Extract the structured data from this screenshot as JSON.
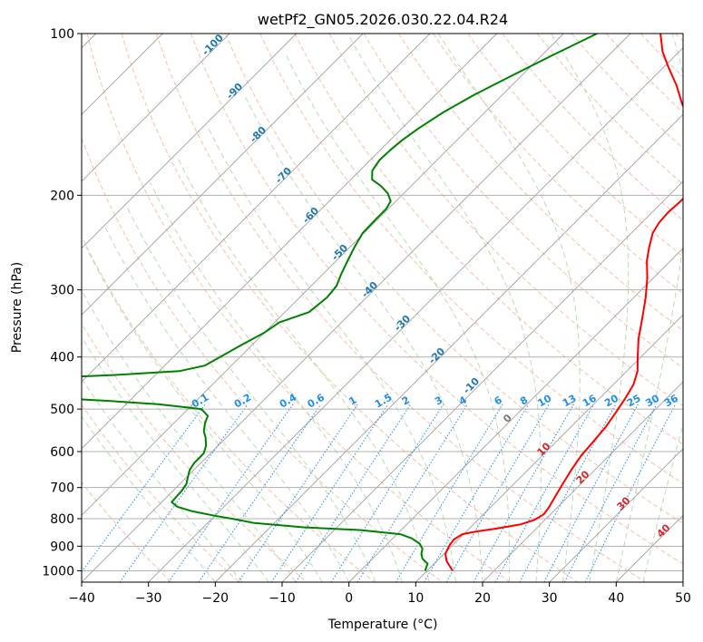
{
  "chart_data": {
    "type": "skew-t",
    "title": "wetPf2_GN05.2026.030.22.04.R24",
    "xlabel": "Temperature (°C)",
    "ylabel": "Pressure (hPa)",
    "xlim": [
      -40,
      50
    ],
    "ylim": [
      1050,
      100
    ],
    "y_scale": "log",
    "x_ticks": [
      "−40",
      "−30",
      "−20",
      "−10",
      "0",
      "10",
      "20",
      "30",
      "40",
      "50"
    ],
    "y_ticks": [
      "100",
      "200",
      "300",
      "400",
      "500",
      "600",
      "700",
      "800",
      "900",
      "1000"
    ],
    "grid": true,
    "colors": {
      "temperature": "#ff0000",
      "dewpoint": "#008000",
      "isotherm": "#a0a0a0",
      "dry_adiabat": "#f4a582",
      "moist_adiabat": "#a6d3a0",
      "mixing_ratio": "#1f8fe8",
      "isotherm_label": "#1f77b4",
      "moist_label": "#d62728",
      "curve_left": "#d2b48c"
    },
    "isotherm_labels": [
      "-100",
      "-90",
      "-80",
      "-70",
      "-60",
      "-50",
      "-40",
      "-30",
      "-20",
      "-10",
      "0",
      "10",
      "20",
      "30",
      "40"
    ],
    "mixing_ratio_labels": [
      "0.1",
      "0.2",
      "0.4",
      "0.6",
      "1",
      "1.5",
      "2",
      "3",
      "4",
      "6",
      "8",
      "10",
      "13",
      "16",
      "20",
      "25",
      "30",
      "36"
    ],
    "series": [
      {
        "key": "temperature",
        "points": [
          {
            "p": 1000,
            "t": 13.8
          },
          {
            "p": 960,
            "t": 11.5
          },
          {
            "p": 930,
            "t": 10.2
          },
          {
            "p": 900,
            "t": 9.6
          },
          {
            "p": 875,
            "t": 9.3
          },
          {
            "p": 855,
            "t": 9.8
          },
          {
            "p": 845,
            "t": 11.5
          },
          {
            "p": 835,
            "t": 14.0
          },
          {
            "p": 820,
            "t": 17.0
          },
          {
            "p": 805,
            "t": 18.4
          },
          {
            "p": 785,
            "t": 19.0
          },
          {
            "p": 760,
            "t": 18.7
          },
          {
            "p": 730,
            "t": 18.1
          },
          {
            "p": 700,
            "t": 17.5
          },
          {
            "p": 650,
            "t": 16.5
          },
          {
            "p": 610,
            "t": 15.8
          },
          {
            "p": 570,
            "t": 15.5
          },
          {
            "p": 540,
            "t": 15.2
          },
          {
            "p": 510,
            "t": 14.6
          },
          {
            "p": 480,
            "t": 13.9
          },
          {
            "p": 450,
            "t": 13.0
          },
          {
            "p": 425,
            "t": 11.6
          },
          {
            "p": 400,
            "t": 9.5
          },
          {
            "p": 370,
            "t": 6.9
          },
          {
            "p": 340,
            "t": 4.5
          },
          {
            "p": 310,
            "t": 1.8
          },
          {
            "p": 285,
            "t": -0.9
          },
          {
            "p": 265,
            "t": -3.5
          },
          {
            "p": 250,
            "t": -5.2
          },
          {
            "p": 235,
            "t": -6.8
          },
          {
            "p": 225,
            "t": -7.4
          },
          {
            "p": 215,
            "t": -7.6
          },
          {
            "p": 205,
            "t": -7.4
          },
          {
            "p": 195,
            "t": -7.5
          },
          {
            "p": 185,
            "t": -8.2
          },
          {
            "p": 175,
            "t": -9.7
          },
          {
            "p": 165,
            "t": -11.7
          },
          {
            "p": 155,
            "t": -14.6
          },
          {
            "p": 145,
            "t": -18.3
          },
          {
            "p": 135,
            "t": -21.8
          },
          {
            "p": 125,
            "t": -25.3
          },
          {
            "p": 115,
            "t": -29.5
          },
          {
            "p": 108,
            "t": -32.5
          },
          {
            "p": 100,
            "t": -35.5
          }
        ]
      },
      {
        "key": "dewpoint",
        "points": [
          {
            "p": 1000,
            "t": 9.7
          },
          {
            "p": 970,
            "t": 9.0
          },
          {
            "p": 950,
            "t": 7.5
          },
          {
            "p": 930,
            "t": 6.6
          },
          {
            "p": 910,
            "t": 6.0
          },
          {
            "p": 890,
            "t": 4.8
          },
          {
            "p": 870,
            "t": 2.8
          },
          {
            "p": 855,
            "t": 0.5
          },
          {
            "p": 840,
            "t": -6.0
          },
          {
            "p": 830,
            "t": -15.0
          },
          {
            "p": 815,
            "t": -23.0
          },
          {
            "p": 800,
            "t": -27.0
          },
          {
            "p": 790,
            "t": -30.0
          },
          {
            "p": 775,
            "t": -34.0
          },
          {
            "p": 760,
            "t": -37.0
          },
          {
            "p": 745,
            "t": -38.5
          },
          {
            "p": 730,
            "t": -38.6
          },
          {
            "p": 710,
            "t": -38.7
          },
          {
            "p": 690,
            "t": -39.0
          },
          {
            "p": 670,
            "t": -39.8
          },
          {
            "p": 650,
            "t": -40.6
          },
          {
            "p": 630,
            "t": -41.0
          },
          {
            "p": 605,
            "t": -41.0
          },
          {
            "p": 585,
            "t": -41.8
          },
          {
            "p": 565,
            "t": -43.1
          },
          {
            "p": 550,
            "t": -44.3
          },
          {
            "p": 530,
            "t": -45.4
          },
          {
            "p": 515,
            "t": -46.0
          },
          {
            "p": 500,
            "t": -48.0
          },
          {
            "p": 490,
            "t": -55.0
          },
          {
            "p": 482,
            "t": -64.0
          },
          {
            "p": 475,
            "t": -75.0
          },
          {
            "p": 470,
            "t": -85.0
          },
          {
            "p": 455,
            "t": -86.0
          },
          {
            "p": 440,
            "t": -80.0
          },
          {
            "p": 432,
            "t": -66.0
          },
          {
            "p": 425,
            "t": -57.0
          },
          {
            "p": 415,
            "t": -54.0
          },
          {
            "p": 400,
            "t": -53.0
          },
          {
            "p": 380,
            "t": -51.6
          },
          {
            "p": 360,
            "t": -50.0
          },
          {
            "p": 345,
            "t": -49.3
          },
          {
            "p": 330,
            "t": -46.4
          },
          {
            "p": 310,
            "t": -45.9
          },
          {
            "p": 295,
            "t": -46.2
          },
          {
            "p": 280,
            "t": -47.3
          },
          {
            "p": 265,
            "t": -48.3
          },
          {
            "p": 250,
            "t": -49.3
          },
          {
            "p": 235,
            "t": -50.2
          },
          {
            "p": 222,
            "t": -50.3
          },
          {
            "p": 212,
            "t": -50.3
          },
          {
            "p": 205,
            "t": -50.8
          },
          {
            "p": 198,
            "t": -52.5
          },
          {
            "p": 192,
            "t": -54.6
          },
          {
            "p": 187,
            "t": -56.8
          },
          {
            "p": 180,
            "t": -58.1
          },
          {
            "p": 172,
            "t": -58.6
          },
          {
            "p": 165,
            "t": -58.5
          },
          {
            "p": 158,
            "t": -58.2
          },
          {
            "p": 150,
            "t": -57.5
          },
          {
            "p": 140,
            "t": -56.2
          },
          {
            "p": 130,
            "t": -54.2
          },
          {
            "p": 120,
            "t": -51.5
          },
          {
            "p": 110,
            "t": -48.5
          },
          {
            "p": 100,
            "t": -45.0
          }
        ]
      }
    ]
  }
}
